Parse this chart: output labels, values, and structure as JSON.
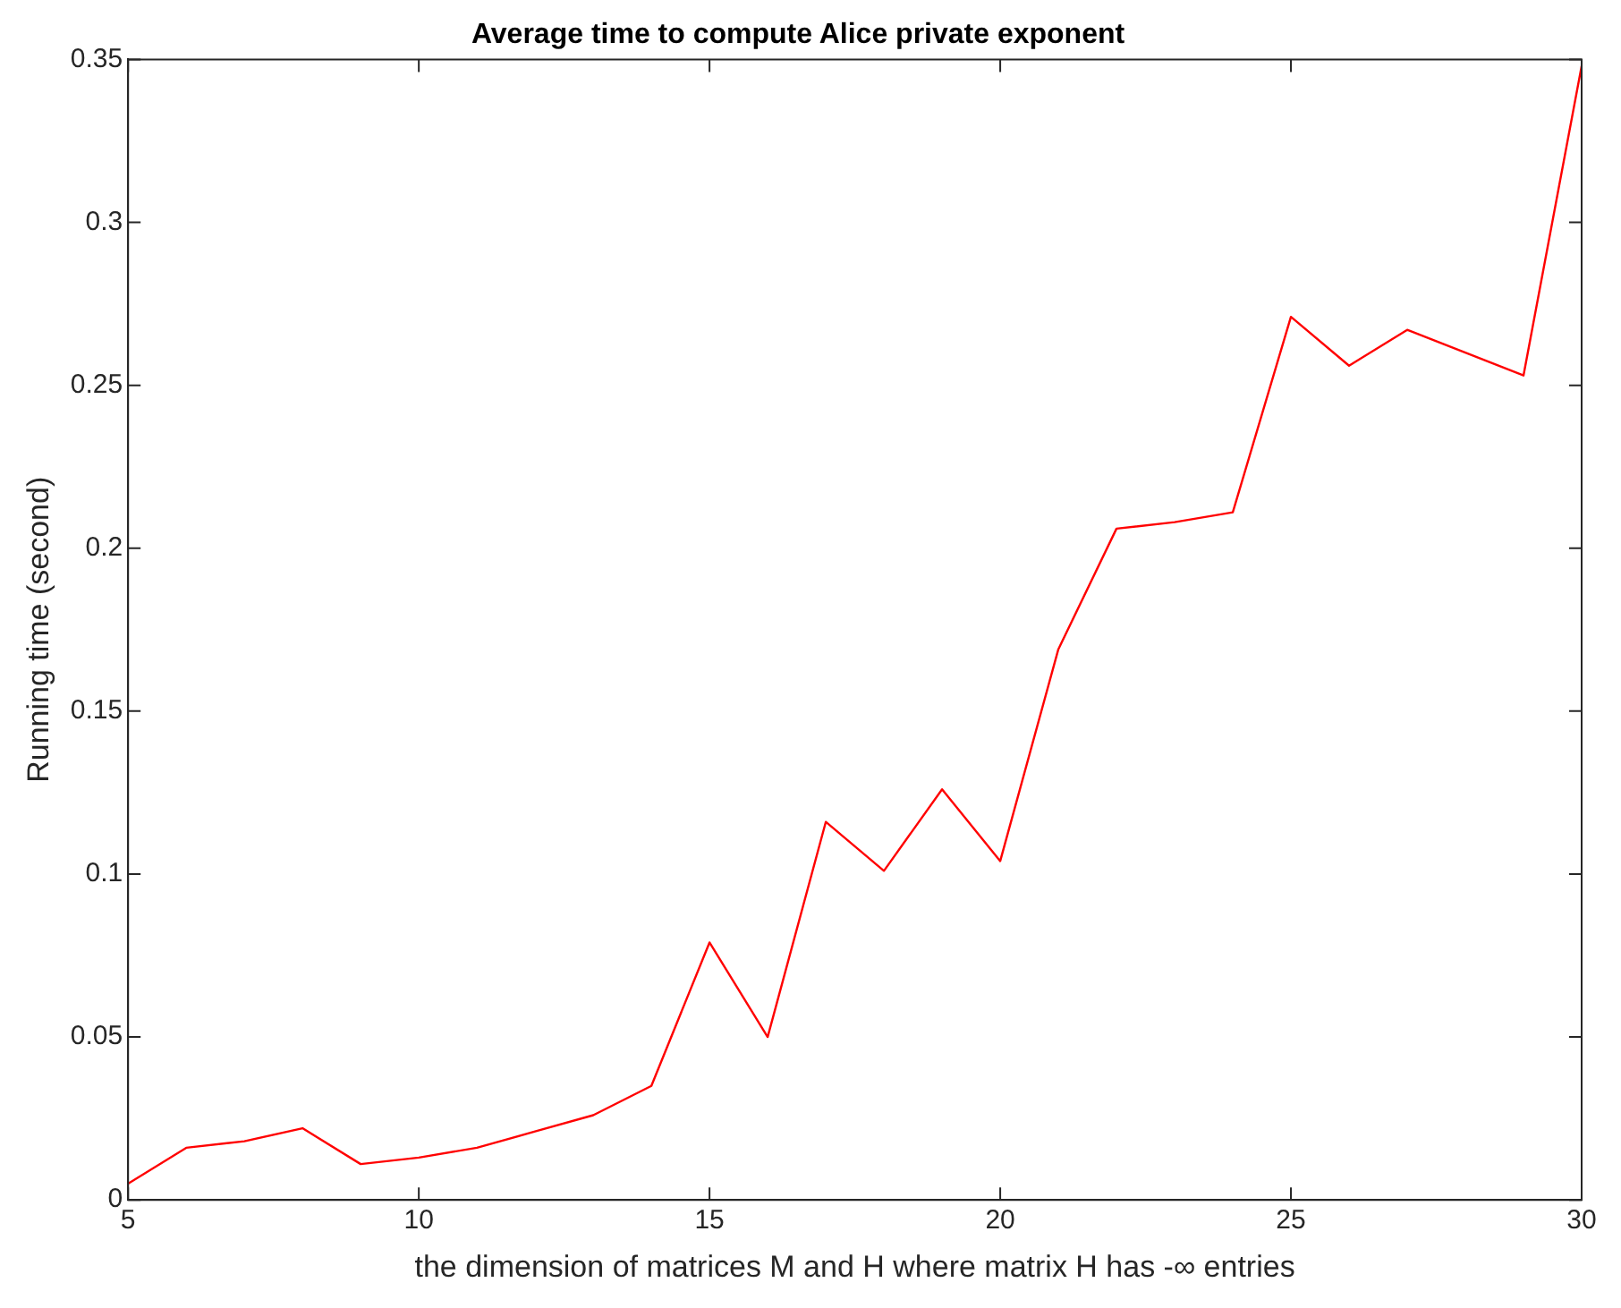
{
  "chart_data": {
    "type": "line",
    "title": "Average time to compute Alice private exponent",
    "xlabel": "the dimension of matrices M and H where matrix H has -∞ entries",
    "ylabel": "Running time (second)",
    "x": [
      5,
      6,
      7,
      8,
      9,
      10,
      11,
      12,
      13,
      14,
      15,
      16,
      17,
      18,
      19,
      20,
      21,
      22,
      23,
      24,
      25,
      26,
      27,
      28,
      29,
      30
    ],
    "series": [
      {
        "color": "#ff0000",
        "values": [
          0.005,
          0.016,
          0.018,
          0.022,
          0.011,
          0.013,
          0.016,
          0.021,
          0.026,
          0.035,
          0.079,
          0.05,
          0.116,
          0.101,
          0.126,
          0.104,
          0.169,
          0.206,
          0.208,
          0.211,
          0.271,
          0.256,
          0.267,
          0.26,
          0.253,
          0.348
        ]
      }
    ],
    "xlim": [
      5,
      30
    ],
    "xticks": [
      5,
      10,
      15,
      20,
      25,
      30
    ],
    "ylim": [
      0,
      0.35
    ],
    "yticks": [
      0,
      0.05,
      0.1,
      0.15,
      0.2,
      0.25,
      0.3,
      0.35
    ],
    "grid": false,
    "legend": false,
    "marker": "none",
    "line_style": "solid"
  }
}
